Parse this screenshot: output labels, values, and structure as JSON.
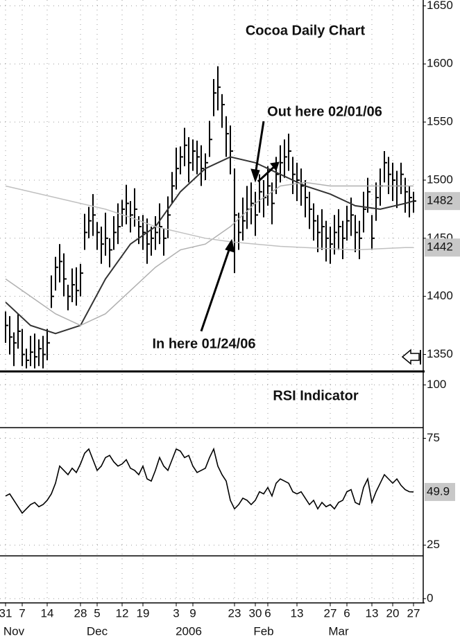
{
  "chart_data": [
    {
      "type": "ohlc",
      "title": "Cocoa Daily Chart",
      "ylim": [
        1336,
        1655
      ],
      "yticks": [
        1350,
        1400,
        1450,
        1500,
        1550,
        1600,
        1650
      ],
      "grid": true,
      "bars": {
        "color": "#000000",
        "high": [
          1387,
          1383,
          1369,
          1385,
          1372,
          1355,
          1366,
          1368,
          1363,
          1366,
          1372,
          1418,
          1434,
          1445,
          1437,
          1410,
          1424,
          1425,
          1428,
          1471,
          1477,
          1488,
          1464,
          1460,
          1472,
          1450,
          1469,
          1480,
          1483,
          1496,
          1482,
          1493,
          1469,
          1470,
          1467,
          1460,
          1469,
          1480,
          1458,
          1486,
          1507,
          1528,
          1529,
          1545,
          1537,
          1535,
          1534,
          1530,
          1523,
          1551,
          1587,
          1598,
          1574,
          1555,
          1547,
          1510,
          1472,
          1485,
          1495,
          1498,
          1490,
          1505,
          1500,
          1512,
          1498,
          1520,
          1530,
          1535,
          1540,
          1520,
          1515,
          1510,
          1500,
          1490,
          1480,
          1470,
          1475,
          1465,
          1460,
          1470,
          1475,
          1465,
          1478,
          1485,
          1470,
          1465,
          1490,
          1502,
          1470,
          1498,
          1510,
          1525,
          1520,
          1515,
          1508,
          1515,
          1502,
          1495,
          1490
        ],
        "low": [
          1360,
          1350,
          1340,
          1355,
          1340,
          1338,
          1340,
          1338,
          1340,
          1338,
          1345,
          1390,
          1405,
          1412,
          1400,
          1388,
          1395,
          1392,
          1400,
          1440,
          1450,
          1452,
          1440,
          1428,
          1435,
          1425,
          1440,
          1445,
          1460,
          1462,
          1455,
          1460,
          1445,
          1440,
          1428,
          1435,
          1440,
          1445,
          1435,
          1450,
          1480,
          1492,
          1505,
          1512,
          1498,
          1508,
          1505,
          1495,
          1500,
          1520,
          1555,
          1560,
          1545,
          1520,
          1505,
          1420,
          1440,
          1448,
          1458,
          1462,
          1452,
          1472,
          1468,
          1478,
          1462,
          1488,
          1498,
          1502,
          1508,
          1488,
          1482,
          1478,
          1468,
          1458,
          1448,
          1438,
          1440,
          1430,
          1428,
          1436,
          1440,
          1432,
          1448,
          1452,
          1438,
          1432,
          1455,
          1472,
          1440,
          1465,
          1478,
          1498,
          1488,
          1482,
          1476,
          1488,
          1472,
          1468,
          1472
        ],
        "close": [
          1375,
          1365,
          1360,
          1370,
          1350,
          1345,
          1352,
          1348,
          1355,
          1350,
          1360,
          1400,
          1425,
          1430,
          1415,
          1400,
          1410,
          1405,
          1420,
          1455,
          1465,
          1470,
          1455,
          1445,
          1450,
          1440,
          1455,
          1460,
          1475,
          1480,
          1470,
          1475,
          1460,
          1455,
          1445,
          1450,
          1455,
          1460,
          1450,
          1470,
          1495,
          1510,
          1520,
          1530,
          1515,
          1525,
          1520,
          1510,
          1515,
          1535,
          1575,
          1580,
          1565,
          1540,
          1525,
          1470,
          1455,
          1465,
          1475,
          1480,
          1470,
          1490,
          1485,
          1495,
          1480,
          1505,
          1515,
          1520,
          1525,
          1505,
          1500,
          1495,
          1485,
          1475,
          1465,
          1455,
          1460,
          1450,
          1445,
          1455,
          1460,
          1450,
          1465,
          1470,
          1455,
          1450,
          1475,
          1490,
          1450,
          1485,
          1495,
          1515,
          1505,
          1500,
          1495,
          1505,
          1490,
          1485,
          1482
        ]
      },
      "series": [
        {
          "color": "#333333",
          "x": [
            0,
            6,
            12,
            18,
            24,
            30,
            36,
            42,
            48,
            54,
            60,
            66,
            72,
            78,
            84,
            90,
            96,
            98
          ],
          "values": [
            1395,
            1375,
            1368,
            1375,
            1415,
            1445,
            1460,
            1490,
            1510,
            1520,
            1515,
            1505,
            1495,
            1488,
            1478,
            1475,
            1480,
            1482
          ]
        },
        {
          "color": "#b0b0b0",
          "x": [
            0,
            6,
            12,
            18,
            24,
            30,
            36,
            42,
            48,
            54,
            60,
            66,
            72,
            78,
            84,
            90,
            96,
            98
          ],
          "values": [
            1415,
            1400,
            1385,
            1375,
            1385,
            1405,
            1425,
            1440,
            1445,
            1460,
            1480,
            1495,
            1498,
            1495,
            1495,
            1495,
            1495,
            1495
          ]
        },
        {
          "color": "#c0c0c0",
          "x": [
            0,
            6,
            12,
            18,
            24,
            30,
            36,
            42,
            48,
            54,
            60,
            66,
            72,
            78,
            84,
            90,
            96,
            98
          ],
          "values": [
            1495,
            1490,
            1485,
            1480,
            1475,
            1468,
            1460,
            1455,
            1450,
            1447,
            1445,
            1443,
            1442,
            1441,
            1440,
            1441,
            1442,
            1442
          ]
        }
      ],
      "annotations": [
        "Out here 02/01/06",
        "In here 01/24/06"
      ]
    },
    {
      "type": "line",
      "title": "RSI Indicator",
      "ylim": [
        -2,
        105
      ],
      "yticks": [
        0,
        25,
        75,
        100
      ],
      "levels": [
        80,
        20
      ],
      "color": "#000000",
      "grid": true,
      "values": [
        48,
        49,
        46,
        43,
        40,
        42,
        44,
        45,
        43,
        44,
        46,
        49,
        54,
        62,
        60,
        58,
        61,
        59,
        63,
        68,
        70,
        65,
        60,
        62,
        66,
        67,
        64,
        62,
        63,
        65,
        61,
        60,
        58,
        62,
        56,
        55,
        60,
        66,
        62,
        60,
        65,
        70,
        69,
        66,
        67,
        62,
        59,
        60,
        61,
        66,
        70,
        62,
        58,
        55,
        46,
        42,
        44,
        47,
        46,
        44,
        46,
        50,
        49,
        52,
        48,
        54,
        56,
        55,
        54,
        50,
        49,
        50,
        47,
        44,
        46,
        42,
        45,
        43,
        44,
        42,
        45,
        46,
        50,
        51,
        45,
        44,
        52,
        56,
        45,
        50,
        54,
        58,
        56,
        54,
        56,
        53,
        51,
        50,
        49.9
      ],
      "xticks": [
        {
          "value": 0,
          "label": "31"
        },
        {
          "value": 4,
          "label": "7"
        },
        {
          "value": 10,
          "label": "14"
        },
        {
          "value": 18,
          "label": "28"
        },
        {
          "value": 22,
          "label": "5"
        },
        {
          "value": 28,
          "label": "12"
        },
        {
          "value": 33,
          "label": "19"
        },
        {
          "value": 41,
          "label": "3"
        },
        {
          "value": 45,
          "label": "9"
        },
        {
          "value": 55,
          "label": "23"
        },
        {
          "value": 60,
          "label": "30"
        },
        {
          "value": 63,
          "label": "6"
        },
        {
          "value": 70,
          "label": "13"
        },
        {
          "value": 78,
          "label": "27"
        },
        {
          "value": 82,
          "label": "6"
        },
        {
          "value": 88,
          "label": "13"
        },
        {
          "value": 93,
          "label": "20"
        },
        {
          "value": 98,
          "label": "27"
        }
      ],
      "month_ticks": [
        {
          "value": 1,
          "label": "Nov"
        },
        {
          "value": 22,
          "label": "Dec"
        },
        {
          "value": 44,
          "label": "2006"
        },
        {
          "value": 62,
          "label": "Feb"
        },
        {
          "value": 80,
          "label": "Mar"
        }
      ]
    }
  ]
}
